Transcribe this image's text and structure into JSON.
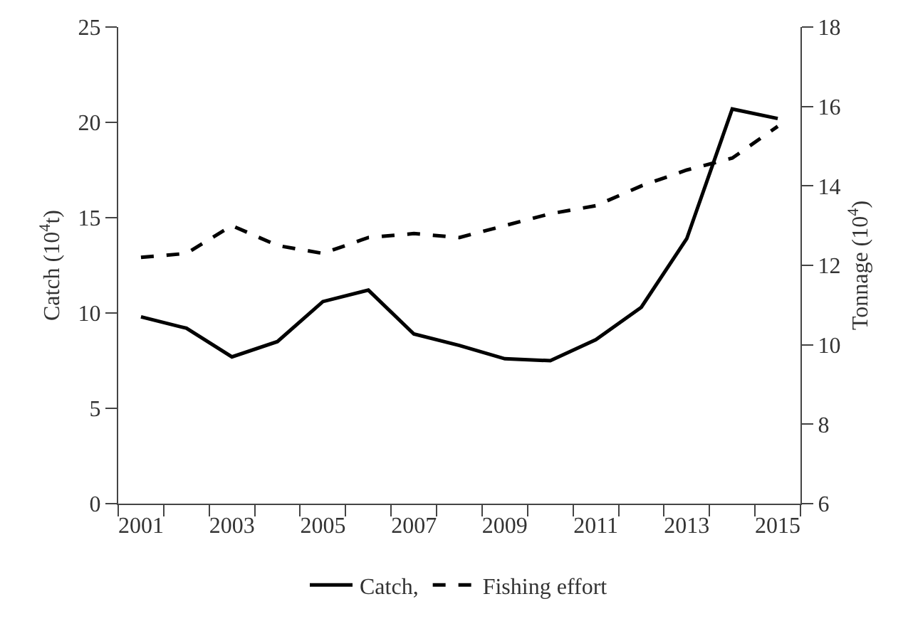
{
  "chart_data": {
    "type": "line",
    "categories": [
      "2001",
      null,
      "2003",
      null,
      "2005",
      null,
      "2007",
      null,
      "2009",
      null,
      "2011",
      null,
      "2013",
      null,
      "2015"
    ],
    "ylabel": "Catch (10$^{4}$t)",
    "y2label": "Tonnage (10$^{4}$)",
    "ylim": [
      0,
      25
    ],
    "yticks": [
      0,
      5,
      10,
      15,
      20,
      25
    ],
    "y2lim": [
      6,
      18
    ],
    "y2ticks": [
      6,
      8,
      10,
      12,
      14,
      16,
      18
    ],
    "legend": "bottom",
    "marker": "none",
    "series": [
      {
        "name": "Catch,",
        "color": "#000000",
        "line_style": "solid",
        "values": [
          9.8,
          9.2,
          7.7,
          8.5,
          10.6,
          11.2,
          8.9,
          8.3,
          7.6,
          7.5,
          8.6,
          10.3,
          13.9,
          20.7,
          20.2
        ]
      },
      {
        "name": "Fishing effort",
        "color": "#000000",
        "line_style": "dashed",
        "axis": "y2",
        "values": [
          12.2,
          12.3,
          13.0,
          12.5,
          12.3,
          12.7,
          12.8,
          12.7,
          13.0,
          13.3,
          13.5,
          14.0,
          14.4,
          14.7,
          15.5
        ]
      }
    ]
  }
}
